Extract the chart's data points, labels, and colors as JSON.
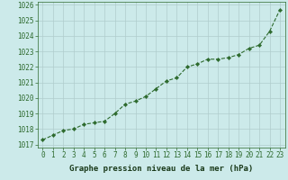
{
  "x": [
    0,
    1,
    2,
    3,
    4,
    5,
    6,
    7,
    8,
    9,
    10,
    11,
    12,
    13,
    14,
    15,
    16,
    17,
    18,
    19,
    20,
    21,
    22,
    23
  ],
  "y": [
    1017.3,
    1017.6,
    1017.9,
    1018.0,
    1018.3,
    1018.4,
    1018.5,
    1019.0,
    1019.6,
    1019.8,
    1020.1,
    1020.6,
    1021.1,
    1021.3,
    1022.0,
    1022.2,
    1022.5,
    1022.5,
    1022.6,
    1022.8,
    1023.2,
    1023.4,
    1024.3,
    1025.7
  ],
  "ylim": [
    1016.8,
    1026.2
  ],
  "yticks": [
    1017,
    1018,
    1019,
    1020,
    1021,
    1022,
    1023,
    1024,
    1025,
    1026
  ],
  "xticks": [
    0,
    1,
    2,
    3,
    4,
    5,
    6,
    7,
    8,
    9,
    10,
    11,
    12,
    13,
    14,
    15,
    16,
    17,
    18,
    19,
    20,
    21,
    22,
    23
  ],
  "xlabel": "Graphe pression niveau de la mer (hPa)",
  "line_color": "#2d6a2d",
  "marker": "D",
  "marker_size": 2.2,
  "bg_color": "#cceaea",
  "grid_color": "#b0cccc",
  "tick_fontsize": 5.5,
  "label_fontsize": 6.5
}
